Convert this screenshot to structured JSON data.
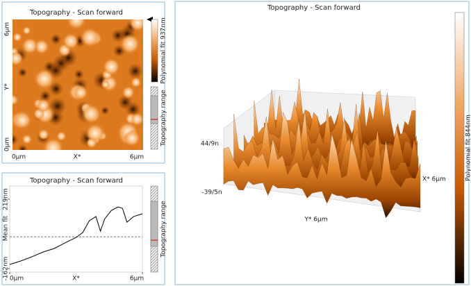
{
  "image_panel": {
    "title": "Topography - Scan forward",
    "y_top": "6µm",
    "y_label": "Y*",
    "y_bottom": "0µm",
    "x_left": "0µm",
    "x_label": "X*",
    "x_right": "6µm",
    "colorbar_label": "Polynomial fit 937nm",
    "range_label": "Topography range"
  },
  "profile_panel": {
    "title": "Topography - Scan forward",
    "range_label": "Topography range",
    "chart_data": {
      "type": "line",
      "y_label": "Mean fit",
      "x_label": "X*",
      "color": "#000000",
      "x": [
        0,
        0.5,
        1.0,
        1.5,
        2.0,
        2.5,
        3.0,
        3.3,
        3.6,
        3.9,
        4.1,
        4.3,
        4.6,
        4.9,
        5.1,
        5.3,
        5.6,
        6.0
      ],
      "values": [
        -139,
        -120,
        -97,
        -71,
        -52,
        -21,
        9,
        36,
        101,
        124,
        44,
        112,
        158,
        177,
        169,
        93,
        124,
        139
      ],
      "mean_fit": 13,
      "xlim": [
        0,
        6
      ],
      "xticks": [
        {
          "value": 0,
          "label": "0µm"
        },
        {
          "value": 6,
          "label": "6µm"
        }
      ],
      "ylim": [
        -162,
        219
      ],
      "yticks": [
        {
          "value": -162,
          "label": "-162nm"
        },
        {
          "value": 219,
          "label": "219nm"
        }
      ]
    }
  },
  "view_3d": {
    "title": "Topography - Scan forward",
    "z_top": "44/9n",
    "z_bottom": "-39/5n",
    "y_axis": "Y* 6µm",
    "x_axis": "X* 6µm",
    "colorbar_label": "Polynomial fit 844nm"
  }
}
